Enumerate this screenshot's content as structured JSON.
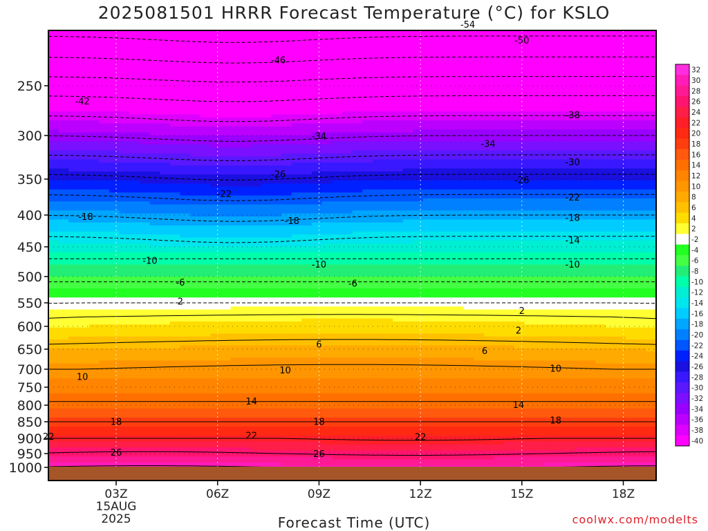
{
  "chart_data": {
    "type": "heatmap",
    "title": "2025081501 HRRR Forecast Temperature (°C) for KSLO",
    "xlabel": "Forecast Time (UTC)",
    "ylabel": "",
    "credit": "coolwx.com/modelts",
    "x_ticks": [
      "03Z",
      "06Z",
      "09Z",
      "12Z",
      "15Z",
      "18Z"
    ],
    "x_date_lines": [
      "15AUG",
      "2025"
    ],
    "y_ticks": [
      "250",
      "300",
      "350",
      "400",
      "450",
      "500",
      "550",
      "600",
      "650",
      "700",
      "750",
      "800",
      "850",
      "900",
      "950",
      "1000"
    ],
    "colorbar_labels": [
      "32",
      "30",
      "28",
      "26",
      "24",
      "22",
      "20",
      "18",
      "16",
      "14",
      "12",
      "10",
      "8",
      "6",
      "4",
      "2",
      "-2",
      "-4",
      "-6",
      "-8",
      "-10",
      "-12",
      "-14",
      "-16",
      "-18",
      "-20",
      "-22",
      "-24",
      "-26",
      "-28",
      "-30",
      "-32",
      "-34",
      "-36",
      "-38",
      "-40"
    ],
    "colorbar_colors": [
      "#ff2de0",
      "#ff1cb8",
      "#ff1a95",
      "#ff1470",
      "#ff1e48",
      "#ff1f28",
      "#ff2a12",
      "#ff3e10",
      "#ff5a0d",
      "#ff7000",
      "#ff8400",
      "#ff9500",
      "#ffaa00",
      "#ffc000",
      "#ffdc00",
      "#ffff33",
      "#ffffff",
      "#22ff22",
      "#44ff44",
      "#22ee77",
      "#00ffaa",
      "#00eed2",
      "#00e5ee",
      "#00ccff",
      "#00a6ff",
      "#0080ff",
      "#0056ff",
      "#0020ff",
      "#1a10e0",
      "#3a18ff",
      "#5a18ff",
      "#7a10ff",
      "#9a00ff",
      "#bb00ff",
      "#dd00ff",
      "#ff00ff"
    ],
    "contour_labels": [
      {
        "v": "-54",
        "t": 13.4,
        "p": 200
      },
      {
        "v": "-50",
        "t": 15.0,
        "p": 212
      },
      {
        "v": "-46",
        "t": 7.8,
        "p": 228
      },
      {
        "v": "-42",
        "t": 2.0,
        "p": 266
      },
      {
        "v": "-38",
        "t": 16.5,
        "p": 280
      },
      {
        "v": "-34",
        "t": 9.0,
        "p": 301
      },
      {
        "v": "-34",
        "t": 14.0,
        "p": 310
      },
      {
        "v": "-30",
        "t": 16.5,
        "p": 331
      },
      {
        "v": "-26",
        "t": 7.8,
        "p": 345
      },
      {
        "v": "-26",
        "t": 15.0,
        "p": 352
      },
      {
        "v": "-22",
        "t": 6.2,
        "p": 371
      },
      {
        "v": "-22",
        "t": 16.5,
        "p": 376
      },
      {
        "v": "-18",
        "t": 2.1,
        "p": 403
      },
      {
        "v": "-18",
        "t": 8.2,
        "p": 410
      },
      {
        "v": "-18",
        "t": 16.5,
        "p": 405
      },
      {
        "v": "-14",
        "t": 16.5,
        "p": 440
      },
      {
        "v": "-10",
        "t": 4.0,
        "p": 474
      },
      {
        "v": "-10",
        "t": 9.0,
        "p": 480
      },
      {
        "v": "-10",
        "t": 16.5,
        "p": 480
      },
      {
        "v": "-6",
        "t": 4.9,
        "p": 512
      },
      {
        "v": "-6",
        "t": 10.0,
        "p": 514
      },
      {
        "v": "2",
        "t": 4.9,
        "p": 548
      },
      {
        "v": "2",
        "t": 15.0,
        "p": 568
      },
      {
        "v": "2",
        "t": 14.9,
        "p": 610
      },
      {
        "v": "6",
        "t": 9.0,
        "p": 640
      },
      {
        "v": "6",
        "t": 13.9,
        "p": 655
      },
      {
        "v": "10",
        "t": 2.0,
        "p": 722
      },
      {
        "v": "10",
        "t": 8.0,
        "p": 704
      },
      {
        "v": "10",
        "t": 16.0,
        "p": 699
      },
      {
        "v": "14",
        "t": 7.0,
        "p": 790
      },
      {
        "v": "14",
        "t": 14.9,
        "p": 800
      },
      {
        "v": "18",
        "t": 3.0,
        "p": 851
      },
      {
        "v": "18",
        "t": 9.0,
        "p": 851
      },
      {
        "v": "18",
        "t": 16.0,
        "p": 847
      },
      {
        "v": "22",
        "t": 1.0,
        "p": 896
      },
      {
        "v": "22",
        "t": 7.0,
        "p": 893
      },
      {
        "v": "22",
        "t": 12.0,
        "p": 897
      },
      {
        "v": "26",
        "t": 3.0,
        "p": 948
      },
      {
        "v": "26",
        "t": 9.0,
        "p": 953
      }
    ]
  }
}
